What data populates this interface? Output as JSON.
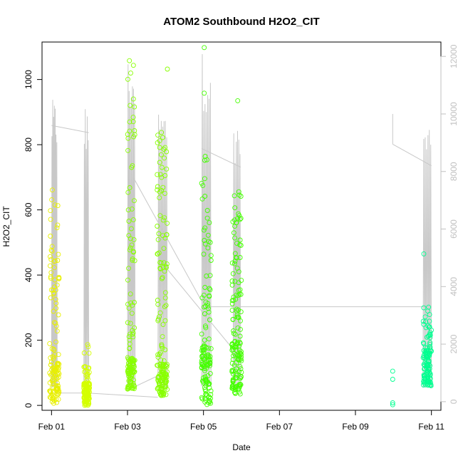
{
  "chart_data": {
    "type": "scatter",
    "title": "ATOM2 Southbound H2O2_CIT",
    "xlabel": "Date",
    "ylabel": "H2O2_CIT",
    "x_ticks": [
      "Feb 01",
      "Feb 03",
      "Feb 05",
      "Feb 07",
      "Feb 09",
      "Feb 11"
    ],
    "x_tick_days": [
      0,
      2,
      4,
      6,
      8,
      10
    ],
    "xlim_days": [
      -0.25,
      10.25
    ],
    "ylim": [
      -15,
      1115
    ],
    "y_ticks": [
      0,
      200,
      400,
      600,
      800,
      1000
    ],
    "y2lim": [
      -300,
      12500
    ],
    "y2_ticks": [
      0,
      2000,
      4000,
      6000,
      8000,
      10000,
      12000
    ],
    "grid": false,
    "colors": {
      "axis": "#000000",
      "secondary_axis": "#c0c0c0",
      "altitude_line": "#c8c8c8"
    },
    "series": [
      {
        "color": "#e8f000",
        "clusters": [
          {
            "x_start": -0.05,
            "x_end": 0.2,
            "dense": [
              5,
              160
            ],
            "mid": [
              160,
              450
            ],
            "sparse": [
              450,
              700
            ],
            "n_dense": 90,
            "n_mid": 35,
            "n_sparse": 14
          }
        ]
      },
      {
        "color": "#d4ff00",
        "clusters": [
          {
            "x_start": 0.85,
            "x_end": 1.0,
            "dense": [
              0,
              70
            ],
            "mid": [
              70,
              120
            ],
            "sparse": [
              150,
              190
            ],
            "n_dense": 110,
            "n_mid": 15,
            "n_sparse": 4
          }
        ]
      },
      {
        "color": "#88ff00",
        "clusters": [
          {
            "x_start": 2.0,
            "x_end": 2.2,
            "dense": [
              50,
              150
            ],
            "mid": [
              150,
              500
            ],
            "sparse": [
              500,
              1060
            ],
            "n_dense": 80,
            "n_mid": 30,
            "n_sparse": 30
          },
          {
            "x_start": 2.78,
            "x_end": 3.05,
            "dense": [
              30,
              130
            ],
            "mid": [
              130,
              450
            ],
            "sparse": [
              450,
              860
            ],
            "n_dense": 90,
            "n_mid": 35,
            "n_sparse": 40
          }
        ],
        "extra_points": [
          {
            "x": 3.05,
            "y": 1032
          }
        ]
      },
      {
        "color": "#44ff00",
        "clusters": [
          {
            "x_start": 3.95,
            "x_end": 4.2,
            "dense": [
              0,
              180
            ],
            "mid": [
              180,
              400
            ],
            "sparse": [
              400,
              770
            ],
            "n_dense": 90,
            "n_mid": 25,
            "n_sparse": 20
          },
          {
            "x_start": 4.75,
            "x_end": 5.0,
            "dense": [
              30,
              200
            ],
            "mid": [
              200,
              450
            ],
            "sparse": [
              450,
              660
            ],
            "n_dense": 90,
            "n_mid": 40,
            "n_sparse": 25
          }
        ],
        "extra_points": [
          {
            "x": 4.02,
            "y": 1098
          },
          {
            "x": 4.02,
            "y": 958
          },
          {
            "x": 4.9,
            "y": 935
          },
          {
            "x": 4.2,
            "y": 460
          },
          {
            "x": 4.2,
            "y": 445
          }
        ]
      },
      {
        "color": "#00ff90",
        "clusters": [
          {
            "x_start": 9.78,
            "x_end": 10.0,
            "dense": [
              60,
              180
            ],
            "mid": [
              180,
              260
            ],
            "sparse": [
              260,
              365
            ],
            "n_dense": 100,
            "n_mid": 20,
            "n_sparse": 5
          }
        ],
        "extra_points": [
          {
            "x": 8.98,
            "y": 105
          },
          {
            "x": 8.98,
            "y": 80
          },
          {
            "x": 8.98,
            "y": 8
          },
          {
            "x": 8.98,
            "y": 2
          },
          {
            "x": 9.8,
            "y": 465
          }
        ]
      }
    ],
    "altitude": {
      "axis": "y2",
      "legs": [
        {
          "start": 0.0,
          "end": 0.15,
          "low": 300,
          "high": 10500,
          "spikes": 14
        },
        {
          "start": 0.85,
          "end": 0.98,
          "low": 300,
          "high": 10400,
          "spikes": 10
        },
        {
          "start": 2.0,
          "end": 2.2,
          "low": 300,
          "high": 12000,
          "spikes": 14
        },
        {
          "start": 2.8,
          "end": 3.05,
          "low": 300,
          "high": 10300,
          "spikes": 14
        },
        {
          "start": 3.95,
          "end": 4.2,
          "low": 300,
          "high": 12200,
          "spikes": 14
        },
        {
          "start": 4.78,
          "end": 4.98,
          "low": 300,
          "high": 10000,
          "spikes": 12
        },
        {
          "start": 9.78,
          "end": 10.0,
          "low": 300,
          "high": 9800,
          "spikes": 12
        }
      ],
      "transit_lines": [
        [
          [
            0.0,
            9600
          ],
          [
            0.98,
            9350
          ]
        ],
        [
          [
            -0.05,
            300
          ],
          [
            0.85,
            300
          ]
        ],
        [
          [
            0.98,
            300
          ],
          [
            2.8,
            150
          ]
        ],
        [
          [
            2.0,
            400
          ],
          [
            2.8,
            900
          ]
        ],
        [
          [
            2.15,
            7800
          ],
          [
            3.95,
            3500
          ]
        ],
        [
          [
            3.95,
            8800
          ],
          [
            4.98,
            8150
          ]
        ],
        [
          [
            3.05,
            4600
          ],
          [
            4.98,
            1500
          ]
        ],
        [
          [
            4.2,
            3300
          ],
          [
            10.0,
            3300
          ]
        ],
        [
          [
            8.98,
            10000
          ],
          [
            8.98,
            8950
          ]
        ],
        [
          [
            8.98,
            8950
          ],
          [
            10.0,
            8200
          ]
        ]
      ]
    }
  }
}
